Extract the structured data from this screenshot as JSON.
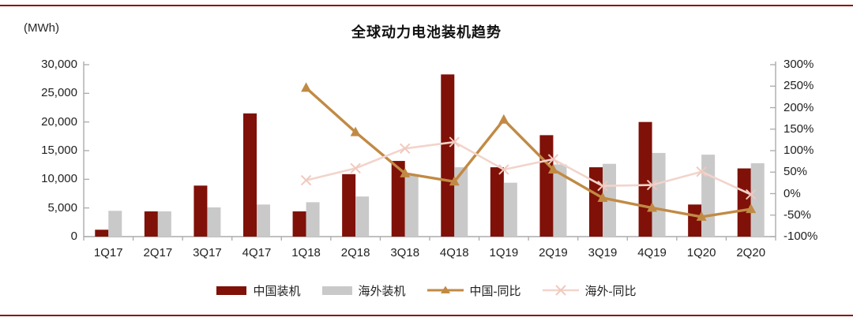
{
  "chart_data": {
    "type": "bar",
    "title": "全球动力电池装机趋势",
    "categories": [
      "1Q17",
      "2Q17",
      "3Q17",
      "4Q17",
      "1Q18",
      "2Q18",
      "3Q18",
      "4Q18",
      "1Q19",
      "2Q19",
      "3Q19",
      "4Q19",
      "1Q20",
      "2Q20"
    ],
    "bar_series": [
      {
        "id": "china-installed",
        "name": "中国装机",
        "color": "#7f1108",
        "values": [
          1200,
          4400,
          8900,
          21500,
          4400,
          10900,
          13200,
          28300,
          12100,
          17700,
          12100,
          20000,
          5600,
          11900
        ]
      },
      {
        "id": "overseas-installed",
        "name": "海外装机",
        "color": "#c9c9c9",
        "values": [
          4500,
          4400,
          5100,
          5600,
          6000,
          7000,
          10700,
          12100,
          9400,
          12600,
          12700,
          14600,
          14300,
          12800
        ]
      }
    ],
    "line_series": [
      {
        "id": "china-yoy",
        "name": "中国-同比",
        "color": "#c18a44",
        "marker": "triangle",
        "values": [
          null,
          null,
          null,
          null,
          246,
          143,
          47,
          28,
          172,
          56,
          -10,
          -33,
          -54,
          -36
        ]
      },
      {
        "id": "overseas-yoy",
        "name": "海外-同比",
        "color": "#f2d4cb",
        "marker": "x",
        "values": [
          null,
          null,
          null,
          null,
          31,
          59,
          105,
          120,
          56,
          80,
          18,
          20,
          51,
          -2
        ]
      }
    ],
    "left_axis": {
      "label": "(MWh)",
      "min": 0,
      "max": 30000,
      "step": 5000,
      "tick_labels": [
        "0",
        "5,000",
        "10,000",
        "15,000",
        "20,000",
        "25,000",
        "30,000"
      ]
    },
    "right_axis": {
      "min": -100,
      "max": 300,
      "step": 50,
      "tick_labels": [
        "-100%",
        "-50%",
        "0%",
        "50%",
        "100%",
        "150%",
        "200%",
        "250%",
        "300%"
      ]
    },
    "legend_position": "bottom",
    "grid": "off"
  },
  "colors": {
    "page_rule": "#8a1110",
    "axis": "#ababab",
    "text": "#1f1f1f"
  }
}
